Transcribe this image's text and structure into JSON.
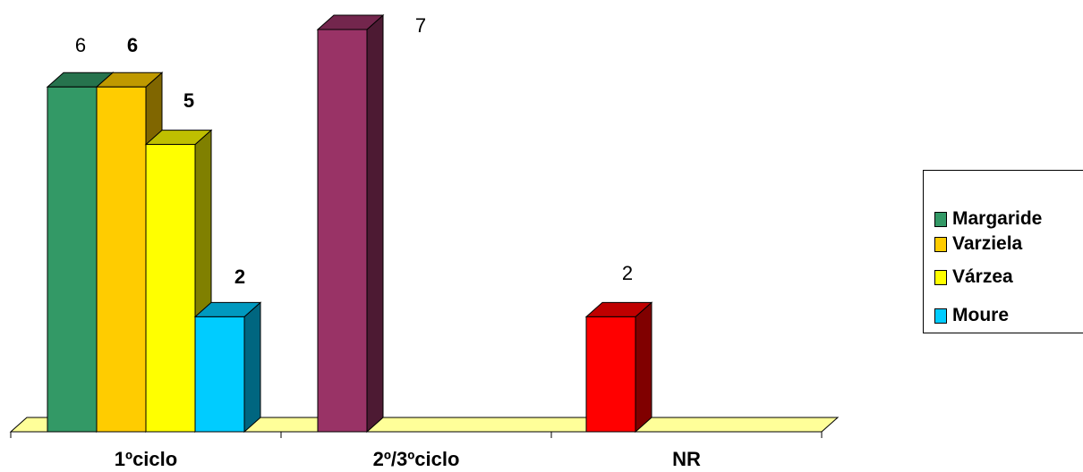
{
  "chart_data": {
    "type": "bar",
    "title": "",
    "xlabel": "",
    "ylabel": "",
    "ylim": [
      0,
      7
    ],
    "grid": false,
    "legend_position": "right",
    "categories": [
      "1ºciclo",
      "2º/3ºciclo",
      "NR"
    ],
    "series": [
      {
        "name": "Margaride",
        "color": "#339966",
        "values": [
          6,
          null,
          null
        ],
        "label_bold": false
      },
      {
        "name": "Varziela",
        "color": "#FFCC00",
        "values": [
          6,
          null,
          null
        ],
        "label_bold": true
      },
      {
        "name": "Várzea",
        "color": "#FFFF00",
        "values": [
          5,
          null,
          null
        ],
        "label_bold": true
      },
      {
        "name": "Moure",
        "color": "#00CCFF",
        "values": [
          2,
          null,
          null
        ],
        "label_bold": true
      },
      {
        "name": "",
        "color": "#993366",
        "values": [
          null,
          7,
          null
        ],
        "label_bold": false
      },
      {
        "name": "",
        "color": "#FF0000",
        "values": [
          null,
          null,
          2
        ],
        "label_bold": false
      }
    ],
    "floor_color": "#FFFF99"
  },
  "legend": {
    "items": [
      {
        "label": "Margaride",
        "color": "#339966"
      },
      {
        "label": "Varziela",
        "color": "#FFCC00"
      },
      {
        "label": "Várzea",
        "color": "#FFFF00"
      },
      {
        "label": "Moure",
        "color": "#00CCFF"
      }
    ]
  }
}
